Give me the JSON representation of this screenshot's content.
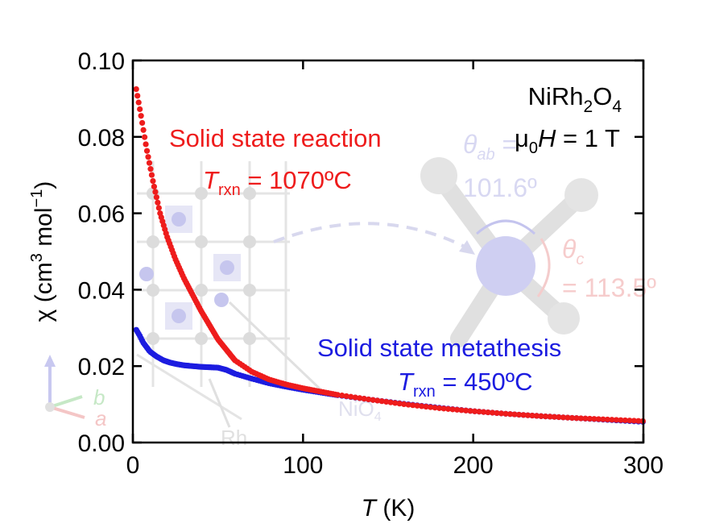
{
  "colors": {
    "ssr": "#ee1c1c",
    "ssm": "#1c1ce0",
    "inset_grey": "#d9d9d9",
    "inset_blue": "#c8c8ee",
    "inset_red": "#f6c8c8"
  },
  "chart_data": {
    "type": "scatter",
    "title": "",
    "xlabel": {
      "var": "T",
      "unit": " (K)"
    },
    "ylabel": {
      "chi": "χ",
      "open": " (cm",
      "exp3": "3",
      "mid": " mol",
      "expm1": "−1",
      "close": ")"
    },
    "xlim": [
      0,
      300
    ],
    "ylim": [
      0,
      0.1
    ],
    "x_ticks": [
      0,
      100,
      200,
      300
    ],
    "x_tick_labels": [
      "0",
      "100",
      "200",
      "300"
    ],
    "y_ticks": [
      0,
      0.02,
      0.04,
      0.06,
      0.08,
      0.1
    ],
    "y_tick_labels": [
      "0.00",
      "0.02",
      "0.04",
      "0.06",
      "0.08",
      "0.10"
    ],
    "grid": false,
    "series": [
      {
        "name": "Solid state reaction",
        "synthesis": "T_rxn = 1070ºC",
        "color": "#ee1c1c",
        "x": [
          2,
          5,
          8,
          12,
          16,
          20,
          25,
          30,
          40,
          50,
          60,
          70,
          80,
          90,
          100,
          120,
          140,
          160,
          180,
          200,
          220,
          240,
          260,
          280,
          300
        ],
        "y": [
          0.0925,
          0.085,
          0.077,
          0.068,
          0.06,
          0.054,
          0.048,
          0.043,
          0.0345,
          0.027,
          0.0215,
          0.0185,
          0.0165,
          0.0152,
          0.0142,
          0.0125,
          0.0112,
          0.01,
          0.009,
          0.0082,
          0.0075,
          0.0069,
          0.0064,
          0.006,
          0.0056
        ]
      },
      {
        "name": "Solid state metathesis",
        "synthesis": "T_rxn = 450ºC",
        "color": "#1c1ce0",
        "x": [
          2,
          4,
          6,
          8,
          10,
          14,
          18,
          22,
          26,
          30,
          35,
          40,
          45,
          50,
          55,
          60,
          70,
          80,
          90,
          100,
          120,
          140,
          160,
          180,
          200,
          220,
          240,
          260,
          280,
          300
        ],
        "y": [
          0.0295,
          0.028,
          0.0262,
          0.025,
          0.0238,
          0.0225,
          0.0215,
          0.0209,
          0.0205,
          0.0202,
          0.02,
          0.0198,
          0.0197,
          0.0196,
          0.019,
          0.018,
          0.0167,
          0.0155,
          0.0146,
          0.0138,
          0.0124,
          0.0112,
          0.0101,
          0.0091,
          0.0082,
          0.0075,
          0.0069,
          0.0064,
          0.0059,
          0.0054
        ]
      }
    ],
    "annotations": {
      "compound": {
        "base": "NiRh",
        "sub1": "2",
        "mid": "O",
        "sub2": "4"
      },
      "field": {
        "mu": "μ",
        "mu_sub": "0",
        "H": "H",
        "rest": " = 1 T"
      },
      "ssr": {
        "line1": "Solid state reaction",
        "T": "T",
        "T_sub": "rxn",
        "T_rest": " = 1070ºC"
      },
      "ssm": {
        "line1": "Solid state metathesis",
        "T": "T",
        "T_sub": "rxn",
        "T_rest": " = 450ºC"
      }
    }
  },
  "inset": {
    "theta_ab": {
      "sym": "θ",
      "sub": "ab",
      "rest": " ="
    },
    "theta_ab_value": "101.6º",
    "theta_c": {
      "sym": "θ",
      "sub": "c"
    },
    "theta_c_value": "= 113.5º",
    "rh_label": "Rh",
    "nio4_label": {
      "base": "NiO",
      "sub": "4"
    },
    "axis_b": "b",
    "axis_a": "a"
  }
}
